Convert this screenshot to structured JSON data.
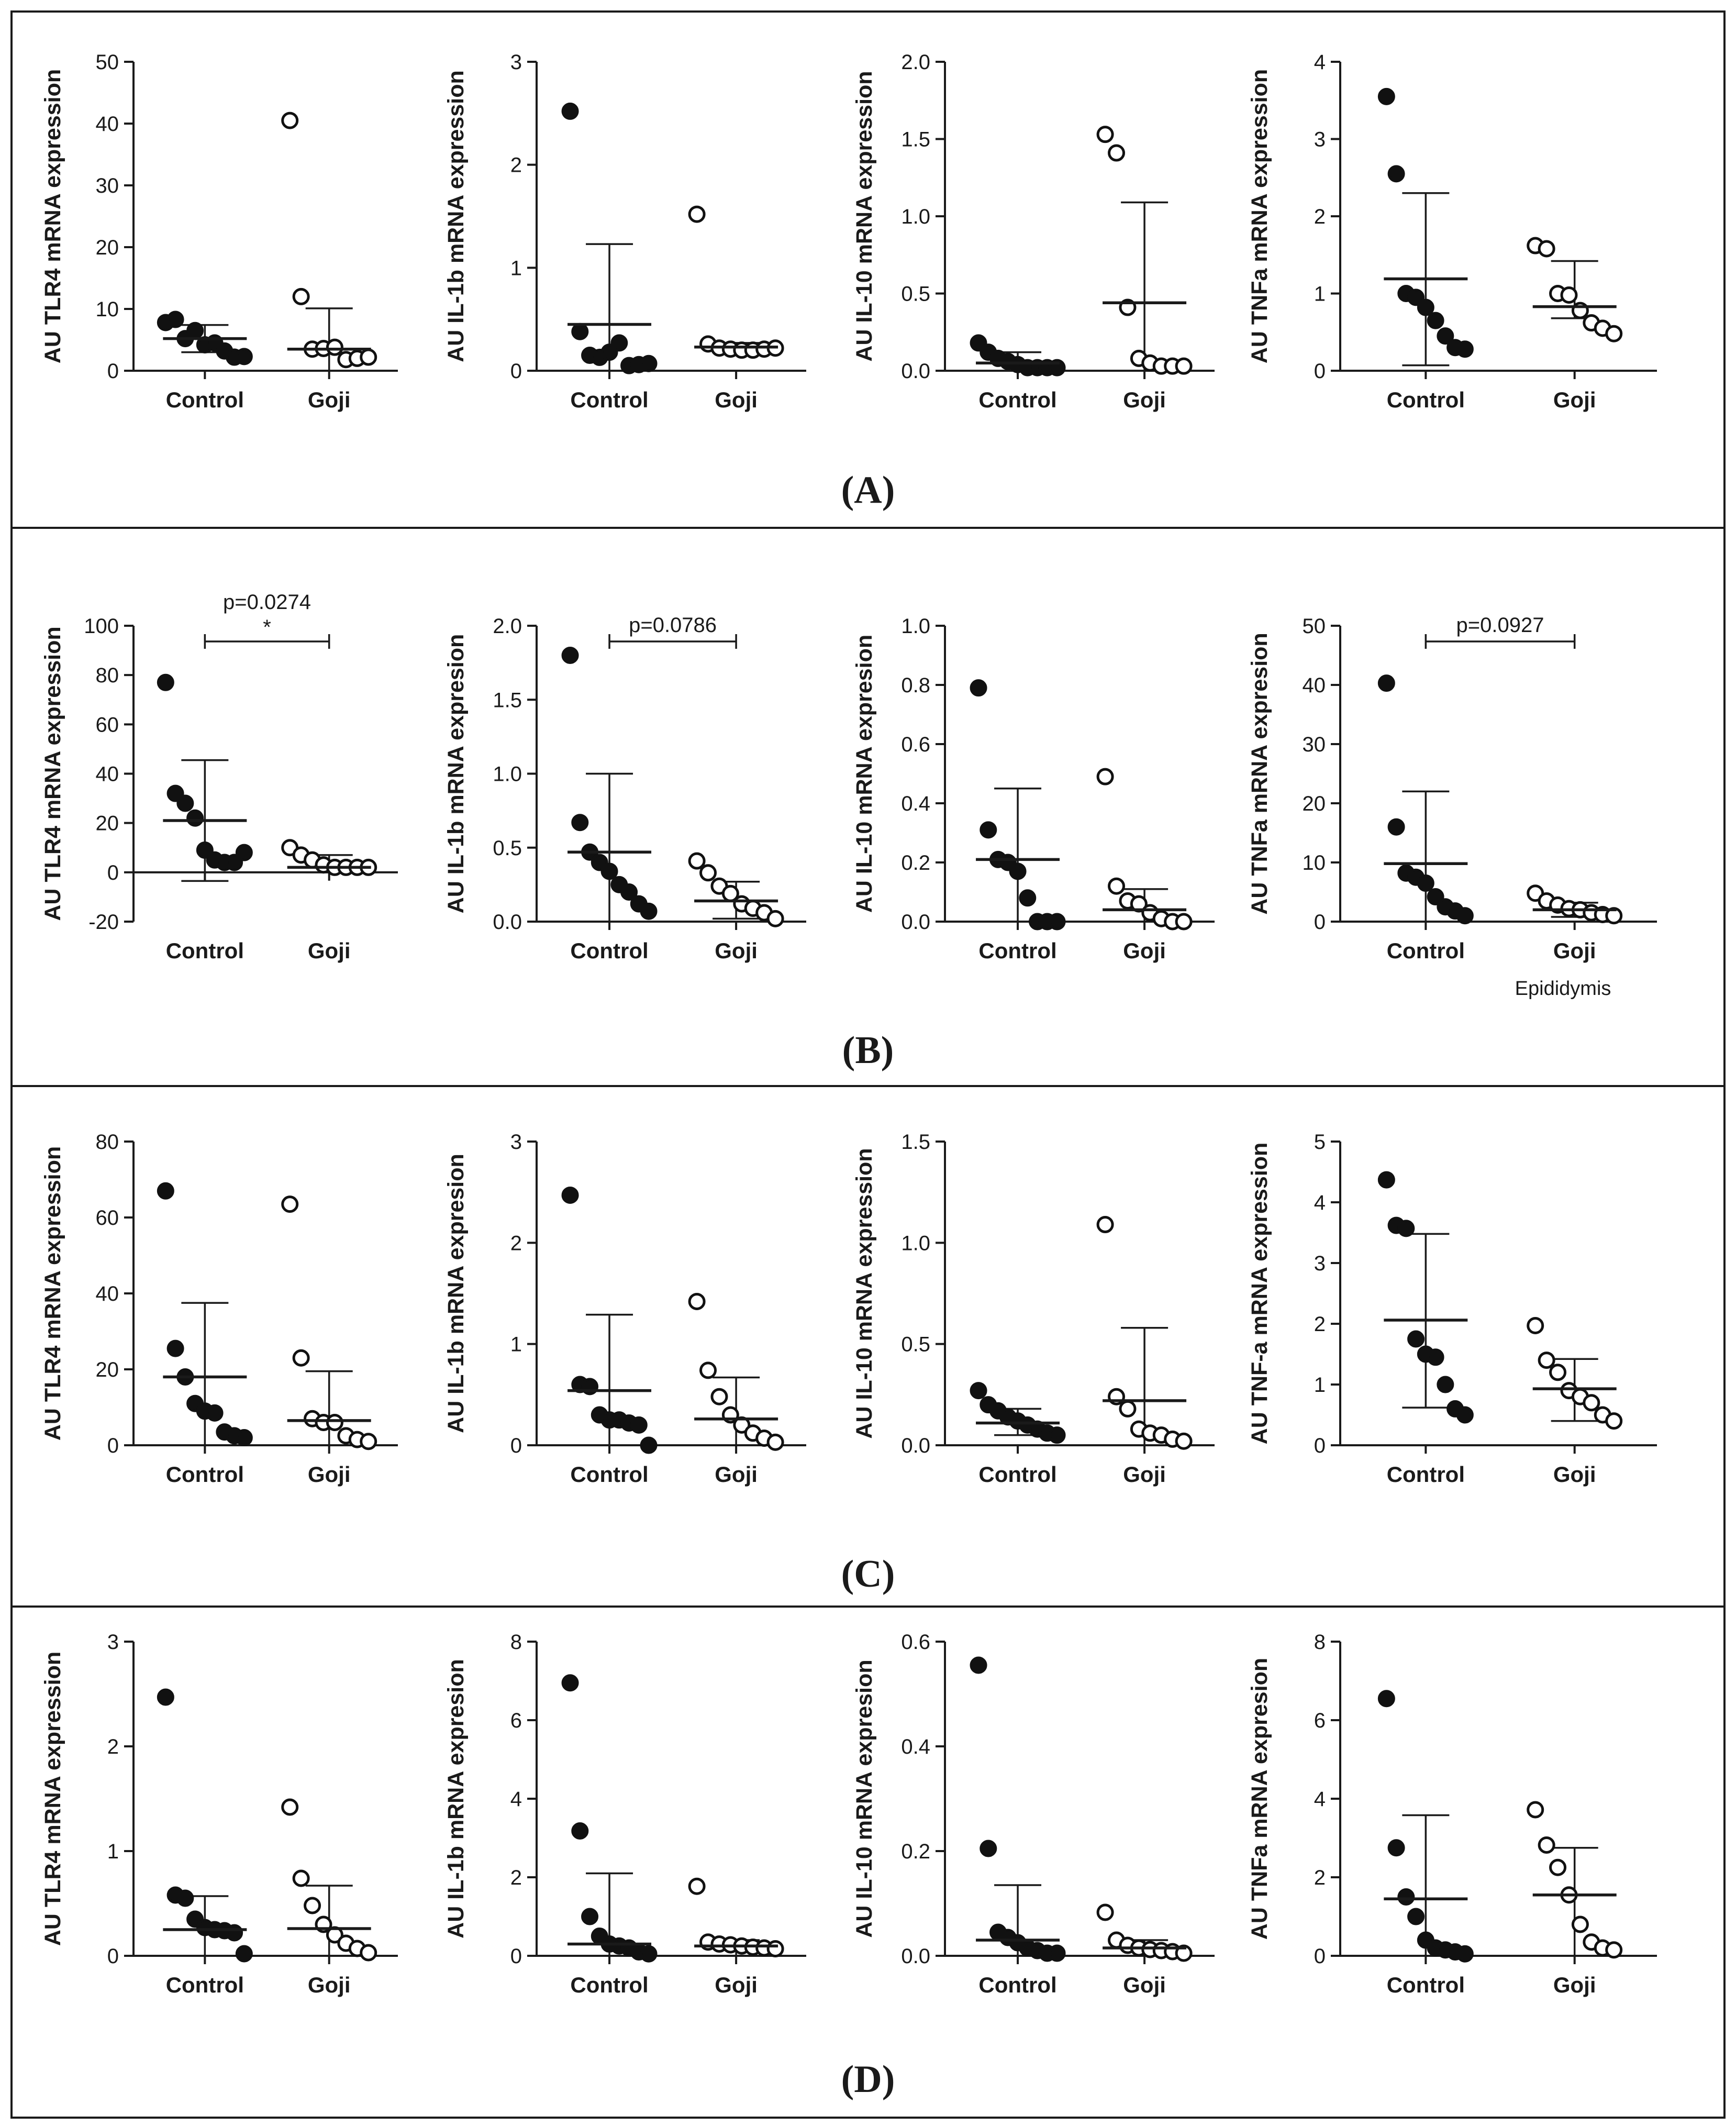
{
  "panel_labels": [
    "(A)",
    "(B)",
    "(C)",
    "(D)"
  ],
  "panels": [
    {
      "label": "A",
      "label_text": "(A)",
      "note": "",
      "charts": [
        {
          "ylabel": "AU TLR4 mRNA expression",
          "ylim": [
            0,
            50
          ],
          "yticks": [
            0,
            10,
            20,
            30,
            40,
            50
          ],
          "categories": [
            "Control",
            "Goji"
          ],
          "series": [
            {
              "name": "Control",
              "filled": true,
              "mean": 5.2,
              "sd_low": 3.0,
              "sd_high": 7.4,
              "values": [
                7.8,
                8.3,
                5.2,
                6.5,
                4.2,
                4.5,
                3.2,
                2.2,
                2.3
              ]
            },
            {
              "name": "Goji",
              "filled": false,
              "mean": 3.5,
              "sd_low": 0,
              "sd_high": 10.1,
              "values": [
                40.5,
                12.0,
                3.5,
                3.6,
                3.8,
                1.8,
                2.0,
                2.2
              ]
            }
          ],
          "significance": null
        },
        {
          "ylabel": "AU IL-1b mRNA expression",
          "ylim": [
            0,
            3
          ],
          "yticks": [
            0,
            1,
            2,
            3
          ],
          "categories": [
            "Control",
            "Goji"
          ],
          "series": [
            {
              "name": "Control",
              "filled": true,
              "mean": 0.45,
              "sd_low": 0,
              "sd_high": 1.23,
              "values": [
                2.52,
                0.38,
                0.15,
                0.13,
                0.18,
                0.27,
                0.05,
                0.06,
                0.07
              ]
            },
            {
              "name": "Goji",
              "filled": false,
              "mean": 0.23,
              "sd_low": 0.19,
              "sd_high": 0.27,
              "values": [
                1.52,
                0.26,
                0.22,
                0.21,
                0.2,
                0.2,
                0.21,
                0.22
              ]
            }
          ],
          "significance": null
        },
        {
          "ylabel": "AU IL-10 mRNA expression",
          "ylim": [
            0,
            2.0
          ],
          "yticks": [
            "0.0",
            "0.5",
            "1.0",
            "1.5",
            "2.0"
          ],
          "categories": [
            "Control",
            "Goji"
          ],
          "series": [
            {
              "name": "Control",
              "filled": true,
              "mean": 0.05,
              "sd_low": 0,
              "sd_high": 0.12,
              "values": [
                0.18,
                0.12,
                0.08,
                0.06,
                0.04,
                0.02,
                0.02,
                0.02,
                0.02
              ]
            },
            {
              "name": "Goji",
              "filled": false,
              "mean": 0.44,
              "sd_low": 0,
              "sd_high": 1.09,
              "values": [
                1.53,
                1.41,
                0.41,
                0.08,
                0.05,
                0.03,
                0.03,
                0.03
              ]
            }
          ],
          "significance": null
        },
        {
          "ylabel": "AU TNFa mRNA expression",
          "ylim": [
            0,
            4
          ],
          "yticks": [
            0,
            1,
            2,
            3,
            4
          ],
          "categories": [
            "Control",
            "Goji"
          ],
          "series": [
            {
              "name": "Control",
              "filled": true,
              "mean": 1.19,
              "sd_low": 0.07,
              "sd_high": 2.3,
              "values": [
                3.55,
                2.55,
                1.0,
                0.95,
                0.82,
                0.65,
                0.45,
                0.3,
                0.28
              ]
            },
            {
              "name": "Goji",
              "filled": false,
              "mean": 0.83,
              "sd_low": 0.68,
              "sd_high": 1.42,
              "values": [
                1.62,
                1.58,
                1.0,
                0.98,
                0.78,
                0.62,
                0.55,
                0.48
              ]
            }
          ],
          "significance": null
        }
      ]
    },
    {
      "label": "B",
      "label_text": "(B)",
      "note": "Epididymis",
      "charts": [
        {
          "ylabel": "AU TLR4 mRNA expression",
          "ylim": [
            -20,
            100
          ],
          "yticks": [
            -20,
            0,
            20,
            40,
            60,
            80,
            100
          ],
          "categories": [
            "Control",
            "Goji"
          ],
          "series": [
            {
              "name": "Control",
              "filled": true,
              "mean": 21,
              "sd_low": -3.5,
              "sd_high": 45.5,
              "values": [
                77,
                32,
                28,
                22,
                9,
                5,
                4,
                4,
                8
              ]
            },
            {
              "name": "Goji",
              "filled": false,
              "mean": 2,
              "sd_low": 0,
              "sd_high": 7,
              "values": [
                10,
                7,
                5,
                3,
                2,
                2,
                2,
                2
              ]
            }
          ],
          "significance": {
            "text": "p=0.0274",
            "star": "*"
          }
        },
        {
          "ylabel": "AU IL-1b mRNA expresion",
          "ylim": [
            0,
            2.0
          ],
          "yticks": [
            "0.0",
            "0.5",
            "1.0",
            "1.5",
            "2.0"
          ],
          "categories": [
            "Control",
            "Goji"
          ],
          "series": [
            {
              "name": "Control",
              "filled": true,
              "mean": 0.47,
              "sd_low": 0,
              "sd_high": 1.0,
              "values": [
                1.8,
                0.67,
                0.47,
                0.4,
                0.34,
                0.25,
                0.2,
                0.12,
                0.07
              ]
            },
            {
              "name": "Goji",
              "filled": false,
              "mean": 0.14,
              "sd_low": 0.02,
              "sd_high": 0.27,
              "values": [
                0.41,
                0.33,
                0.24,
                0.19,
                0.12,
                0.09,
                0.06,
                0.02
              ]
            }
          ],
          "significance": {
            "text": "p=0.0786",
            "star": ""
          }
        },
        {
          "ylabel": "AU IL-10 mRNA expresion",
          "ylim": [
            0,
            1.0
          ],
          "yticks": [
            "0.0",
            "0.2",
            "0.4",
            "0.6",
            "0.8",
            "1.0"
          ],
          "categories": [
            "Control",
            "Goji"
          ],
          "series": [
            {
              "name": "Control",
              "filled": true,
              "mean": 0.21,
              "sd_low": 0,
              "sd_high": 0.45,
              "values": [
                0.79,
                0.31,
                0.21,
                0.2,
                0.17,
                0.08,
                0.0,
                0.0,
                0.0
              ]
            },
            {
              "name": "Goji",
              "filled": false,
              "mean": 0.04,
              "sd_low": 0,
              "sd_high": 0.11,
              "values": [
                0.49,
                0.12,
                0.07,
                0.06,
                0.03,
                0.01,
                0.0,
                0.0
              ]
            }
          ],
          "significance": null
        },
        {
          "ylabel": "AU TNFa mRNA expresion",
          "ylim": [
            0,
            50
          ],
          "yticks": [
            0,
            10,
            20,
            30,
            40,
            50
          ],
          "categories": [
            "Control",
            "Goji"
          ],
          "series": [
            {
              "name": "Control",
              "filled": true,
              "mean": 9.8,
              "sd_low": 0,
              "sd_high": 22,
              "values": [
                40.3,
                16,
                8.2,
                7.5,
                6.5,
                4.2,
                2.5,
                1.8,
                1.0
              ]
            },
            {
              "name": "Goji",
              "filled": false,
              "mean": 2.0,
              "sd_low": 0.8,
              "sd_high": 3.2,
              "values": [
                4.8,
                3.5,
                2.8,
                2.2,
                2.0,
                1.5,
                1.2,
                1.0
              ]
            }
          ],
          "significance": {
            "text": "p=0.0927",
            "star": ""
          }
        }
      ]
    },
    {
      "label": "C",
      "label_text": "(C)",
      "note": "",
      "charts": [
        {
          "ylabel": "AU TLR4 mRNA expression",
          "ylim": [
            0,
            80
          ],
          "yticks": [
            0,
            20,
            40,
            60,
            80
          ],
          "categories": [
            "Control",
            "Goji"
          ],
          "series": [
            {
              "name": "Control",
              "filled": true,
              "mean": 18,
              "sd_low": 0,
              "sd_high": 37.5,
              "values": [
                67,
                25.5,
                18,
                11,
                9,
                8.5,
                3.5,
                2.5,
                2.0
              ]
            },
            {
              "name": "Goji",
              "filled": false,
              "mean": 6.5,
              "sd_low": 0,
              "sd_high": 19.5,
              "values": [
                63.5,
                23,
                7,
                6,
                6,
                2.5,
                1.5,
                1.0
              ]
            }
          ],
          "significance": null
        },
        {
          "ylabel": "AU IL-1b mRNA expresion",
          "ylim": [
            0,
            3
          ],
          "yticks": [
            0,
            1,
            2,
            3
          ],
          "categories": [
            "Control",
            "Goji"
          ],
          "series": [
            {
              "name": "Control",
              "filled": true,
              "mean": 0.54,
              "sd_low": 0,
              "sd_high": 1.29,
              "values": [
                2.47,
                0.6,
                0.58,
                0.3,
                0.25,
                0.25,
                0.22,
                0.2,
                0.0
              ]
            },
            {
              "name": "Goji",
              "filled": false,
              "mean": 0.26,
              "sd_low": 0,
              "sd_high": 0.67,
              "values": [
                1.42,
                0.74,
                0.48,
                0.3,
                0.2,
                0.12,
                0.07,
                0.03
              ]
            }
          ],
          "significance": null
        },
        {
          "ylabel": "AU IL-10 mRNA expression",
          "ylim": [
            0,
            1.5
          ],
          "yticks": [
            "0.0",
            "0.5",
            "1.0",
            "1.5"
          ],
          "categories": [
            "Control",
            "Goji"
          ],
          "series": [
            {
              "name": "Control",
              "filled": true,
              "mean": 0.11,
              "sd_low": 0.05,
              "sd_high": 0.18,
              "values": [
                0.27,
                0.2,
                0.17,
                0.14,
                0.12,
                0.1,
                0.08,
                0.06,
                0.05
              ]
            },
            {
              "name": "Goji",
              "filled": false,
              "mean": 0.22,
              "sd_low": 0,
              "sd_high": 0.58,
              "values": [
                1.09,
                0.24,
                0.18,
                0.08,
                0.06,
                0.05,
                0.03,
                0.02
              ]
            }
          ],
          "significance": null
        },
        {
          "ylabel": "AU TNF-a mRNA expression",
          "ylim": [
            0,
            5
          ],
          "yticks": [
            0,
            1,
            2,
            3,
            4,
            5
          ],
          "categories": [
            "Control",
            "Goji"
          ],
          "series": [
            {
              "name": "Control",
              "filled": true,
              "mean": 2.06,
              "sd_low": 0.62,
              "sd_high": 3.48,
              "values": [
                4.37,
                3.62,
                3.57,
                1.75,
                1.5,
                1.45,
                1.0,
                0.6,
                0.5
              ]
            },
            {
              "name": "Goji",
              "filled": false,
              "mean": 0.93,
              "sd_low": 0.4,
              "sd_high": 1.42,
              "values": [
                1.97,
                1.4,
                1.2,
                0.9,
                0.8,
                0.7,
                0.5,
                0.4
              ]
            }
          ],
          "significance": null
        }
      ]
    },
    {
      "label": "D",
      "label_text": "(D)",
      "note": "",
      "charts": [
        {
          "ylabel": "AU TLR4 mRNA expression",
          "ylim": [
            0,
            3
          ],
          "yticks": [
            0,
            1,
            2,
            3
          ],
          "categories": [
            "Control",
            "Goji"
          ],
          "series": [
            {
              "name": "Control",
              "filled": true,
              "mean": 0.25,
              "sd_low": 0,
              "sd_high": 0.57,
              "values": [
                2.47,
                0.58,
                0.55,
                0.35,
                0.27,
                0.25,
                0.24,
                0.22,
                0.02
              ]
            },
            {
              "name": "Goji",
              "filled": false,
              "mean": 0.26,
              "sd_low": 0,
              "sd_high": 0.67,
              "values": [
                1.42,
                0.74,
                0.48,
                0.3,
                0.2,
                0.12,
                0.07,
                0.03
              ]
            }
          ],
          "significance": null
        },
        {
          "ylabel": "AU IL-1b mRNA expresion",
          "ylim": [
            0,
            8
          ],
          "yticks": [
            0,
            2,
            4,
            6,
            8
          ],
          "categories": [
            "Control",
            "Goji"
          ],
          "series": [
            {
              "name": "Control",
              "filled": true,
              "mean": 0.3,
              "sd_low": 0,
              "sd_high": 2.1,
              "values": [
                6.95,
                3.18,
                1.0,
                0.5,
                0.3,
                0.25,
                0.2,
                0.1,
                0.05
              ]
            },
            {
              "name": "Goji",
              "filled": false,
              "mean": 0.25,
              "sd_low": 0,
              "sd_high": 0.4,
              "values": [
                1.77,
                0.35,
                0.3,
                0.28,
                0.25,
                0.22,
                0.2,
                0.18
              ]
            }
          ],
          "significance": null
        },
        {
          "ylabel": "AU IL-10 mRNA expresion",
          "ylim": [
            0,
            0.6
          ],
          "yticks": [
            "0.0",
            "0.2",
            "0.4",
            "0.6"
          ],
          "categories": [
            "Control",
            "Goji"
          ],
          "series": [
            {
              "name": "Control",
              "filled": true,
              "mean": 0.03,
              "sd_low": 0,
              "sd_high": 0.135,
              "values": [
                0.555,
                0.205,
                0.045,
                0.035,
                0.025,
                0.015,
                0.01,
                0.005,
                0.005
              ]
            },
            {
              "name": "Goji",
              "filled": false,
              "mean": 0.015,
              "sd_low": 0,
              "sd_high": 0.03,
              "values": [
                0.083,
                0.03,
                0.02,
                0.015,
                0.012,
                0.01,
                0.008,
                0.005
              ]
            }
          ],
          "significance": null
        },
        {
          "ylabel": "AU TNFa mRNA expresion",
          "ylim": [
            0,
            8
          ],
          "yticks": [
            0,
            2,
            4,
            6,
            8
          ],
          "categories": [
            "Control",
            "Goji"
          ],
          "series": [
            {
              "name": "Control",
              "filled": true,
              "mean": 1.45,
              "sd_low": 0,
              "sd_high": 3.58,
              "values": [
                6.55,
                2.75,
                1.5,
                1.0,
                0.4,
                0.2,
                0.15,
                0.1,
                0.05
              ]
            },
            {
              "name": "Goji",
              "filled": false,
              "mean": 1.55,
              "sd_low": 0,
              "sd_high": 2.75,
              "values": [
                3.72,
                2.82,
                2.25,
                1.55,
                0.8,
                0.35,
                0.2,
                0.15
              ]
            }
          ],
          "significance": null
        }
      ]
    }
  ]
}
